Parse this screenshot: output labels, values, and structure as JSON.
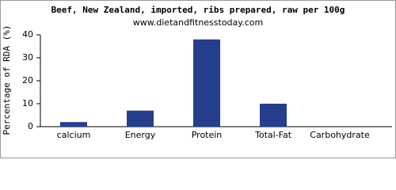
{
  "chart_data": {
    "type": "bar",
    "title": "Beef, New Zealand, imported, ribs prepared, raw per 100g",
    "subtitle": "www.dietandfitnesstoday.com",
    "y_label": "Percentage of RDA (%)",
    "categories": [
      "calcium",
      "Energy",
      "Protein",
      "Total-Fat",
      "Carbohydrate"
    ],
    "values": [
      2,
      7,
      38,
      10,
      0
    ],
    "color": "#263f8c",
    "ylim": [
      0,
      40
    ],
    "yticks": [
      0,
      10,
      20,
      30,
      40
    ],
    "grid": false
  }
}
